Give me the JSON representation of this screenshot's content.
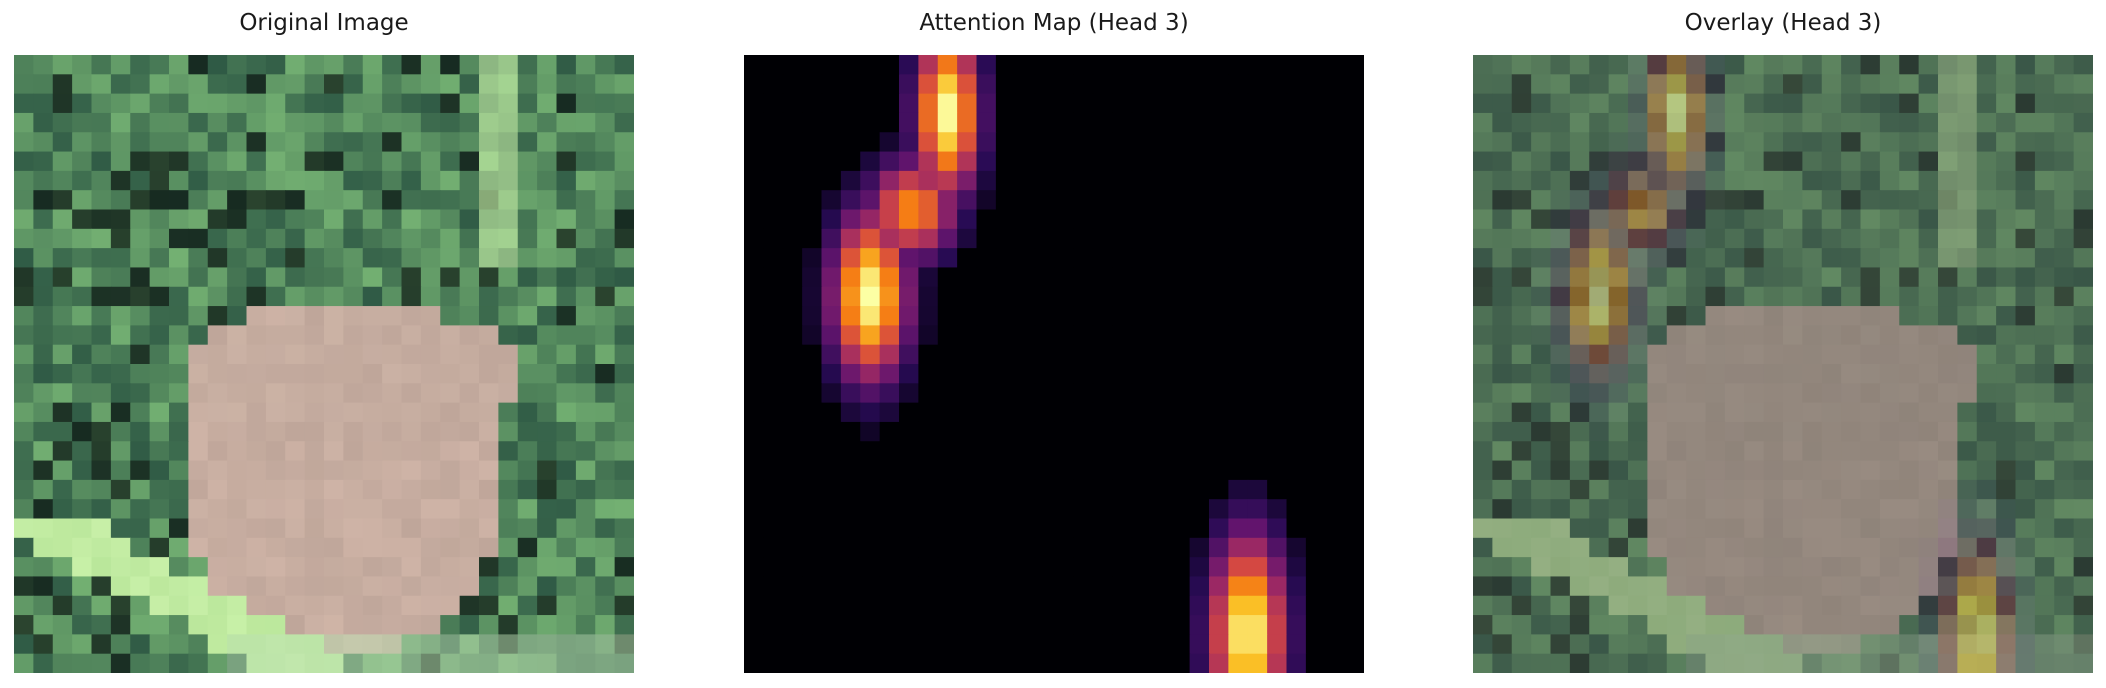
{
  "panels": [
    {
      "title": "Original Image"
    },
    {
      "title": "Attention Map (Head 3)"
    },
    {
      "title": "Overlay (Head 3)"
    }
  ],
  "colors": {
    "background": "#ffffff",
    "foliage_dark": "#2f5a45",
    "foliage_light": "#7fbf7a",
    "frog": "#bfa69a",
    "highlight": "#c8f0a8",
    "attention_low": "#000004",
    "attention_high": "#fcffa4"
  },
  "colormap": "inferno",
  "attention_hotspots": [
    {
      "region": "top-left",
      "level": 1.0
    },
    {
      "region": "bottom-right",
      "level": 1.0
    }
  ]
}
